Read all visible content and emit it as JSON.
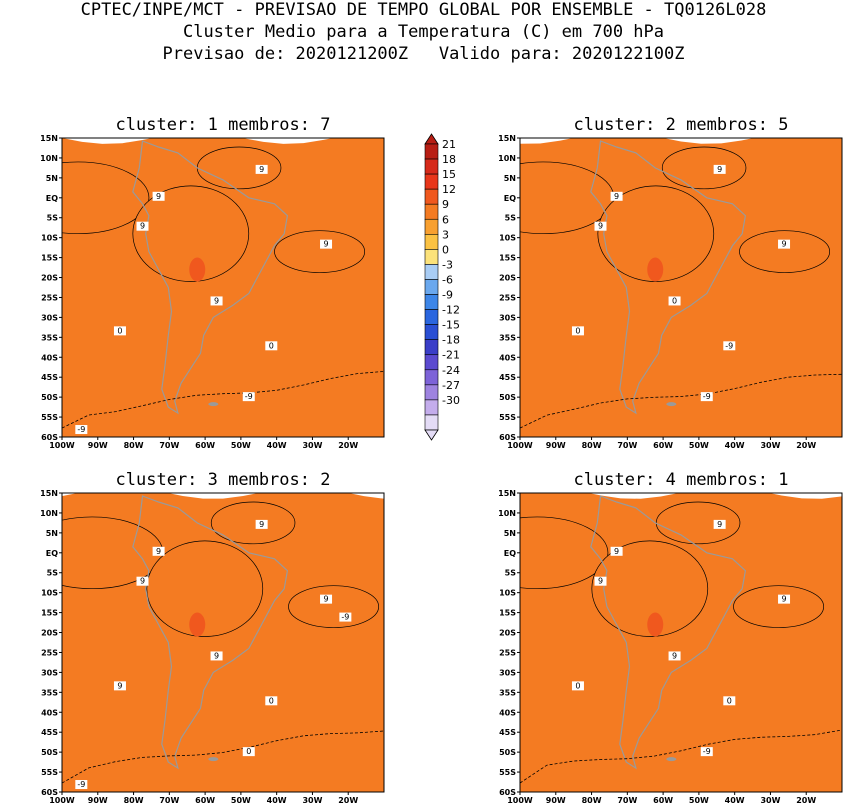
{
  "header": {
    "line1": "CPTEC/INPE/MCT - PREVISAO DE TEMPO GLOBAL POR ENSEMBLE - TQ0126L028",
    "line2": "Cluster Medio para a Temperatura (C) em 700 hPa",
    "line3": "Previsao de: 2020121200Z   Valido para: 2020122100Z"
  },
  "panels": [
    {
      "title": "cluster: 1  membros: 7",
      "contour_labels": [
        "9",
        "9",
        "9",
        "9",
        "9",
        "0",
        "0",
        "-9",
        "-9"
      ]
    },
    {
      "title": "cluster: 2  membros: 5",
      "contour_labels": [
        "9",
        "9",
        "9",
        "9",
        "0",
        "0",
        "-9",
        "-9"
      ]
    },
    {
      "title": "cluster: 3  membros: 2",
      "contour_labels": [
        "9",
        "9",
        "9",
        "9",
        "9",
        "9",
        "0",
        "0",
        "-9",
        "-9"
      ]
    },
    {
      "title": "cluster: 4  membros: 1",
      "contour_labels": [
        "9",
        "9",
        "9",
        "9",
        "9",
        "0",
        "0",
        "-9"
      ]
    }
  ],
  "lat_ticks": [
    "15N",
    "10N",
    "5N",
    "EQ",
    "5S",
    "10S",
    "15S",
    "20S",
    "25S",
    "30S",
    "35S",
    "40S",
    "45S",
    "50S",
    "55S",
    "60S"
  ],
  "lon_ticks": [
    "100W",
    "90W",
    "80W",
    "70W",
    "60W",
    "50W",
    "40W",
    "30W",
    "20W"
  ],
  "colorbar": {
    "labels": [
      "21",
      "18",
      "15",
      "12",
      "9",
      "6",
      "3",
      "0",
      "-3",
      "-6",
      "-9",
      "-12",
      "-15",
      "-18",
      "-21",
      "-24",
      "-27",
      "-30"
    ],
    "colors": [
      "#b81e14",
      "#d62a1a",
      "#e8361a",
      "#f0581e",
      "#f47b22",
      "#f8a030",
      "#fbc243",
      "#fce27a",
      "#a9cdf5",
      "#6aa8ee",
      "#3d86e8",
      "#2a66df",
      "#2a4fd4",
      "#3a3ec8",
      "#5b4ad0",
      "#7d63d8",
      "#9e83e0",
      "#c4adec",
      "#e4dcf6"
    ]
  }
}
